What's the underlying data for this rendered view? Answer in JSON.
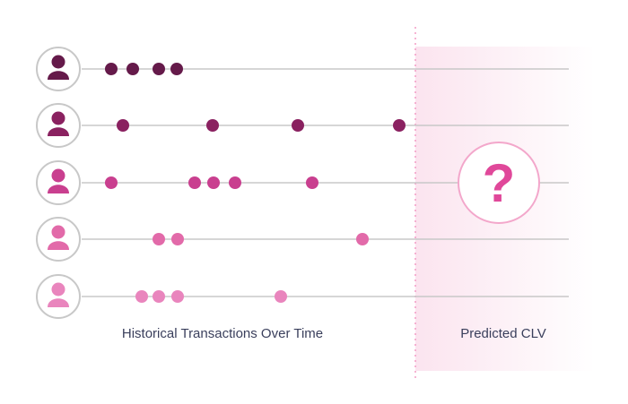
{
  "labels": {
    "historical": "Historical Transactions Over Time",
    "predicted": "Predicted CLV",
    "unknown_mark": "?"
  },
  "colors": {
    "row_colors": [
      "#651a4a",
      "#8a2160",
      "#c93f8f",
      "#e26aa9",
      "#e985bd"
    ],
    "timeline": "#c8c8c8",
    "avatar_ring": "#c8c8c8",
    "divider": "#f3a1c8",
    "predicted_bg_start": "#fbe4ef",
    "predicted_bg_end": "#ffffff",
    "question_ring": "#f3a7cb",
    "question_mark": "#e0489a"
  },
  "customers": [
    {
      "transactions": [
        1,
        2,
        3,
        4
      ]
    },
    {
      "transactions": [
        1,
        2,
        3,
        4
      ]
    },
    {
      "transactions": [
        1,
        2,
        3,
        4,
        5
      ]
    },
    {
      "transactions": [
        1,
        2,
        3
      ]
    },
    {
      "transactions": [
        1,
        2,
        3,
        4
      ]
    }
  ]
}
